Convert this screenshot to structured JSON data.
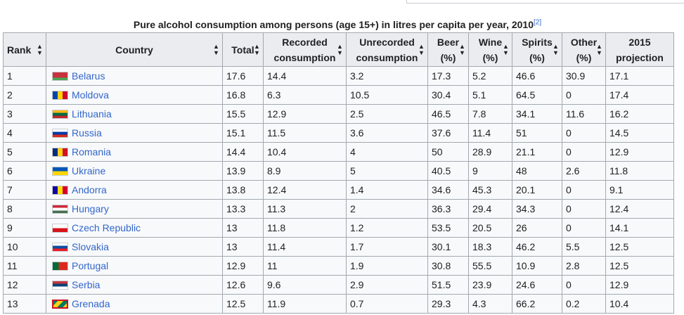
{
  "caption": {
    "title": "Pure alcohol consumption among persons (age 15+) in litres per capita per year, 2010",
    "ref": "[2]"
  },
  "headers": [
    {
      "label": "Rank",
      "icon": "sort-icon"
    },
    {
      "label": "Country",
      "icon": "sort-icon"
    },
    {
      "label": "Total",
      "icon": "sort-icon"
    },
    {
      "label": "Recorded consumption",
      "icon": "sort-icon"
    },
    {
      "label": "Unrecorded consumption",
      "icon": "sort-icon"
    },
    {
      "label": "Beer (%)",
      "icon": "sort-icon"
    },
    {
      "label": "Wine (%)",
      "icon": "sort-icon"
    },
    {
      "label": "Spirits (%)",
      "icon": "sort-icon"
    },
    {
      "label": "Other (%)",
      "icon": "sort-icon"
    },
    {
      "label": "2015 projection",
      "icon": "none"
    }
  ],
  "rows": [
    {
      "rank": "1",
      "country": "Belarus",
      "flag": "flag-belarus-icon",
      "total": "17.6",
      "recorded": "14.4",
      "unrecorded": "3.2",
      "beer": "17.3",
      "wine": "5.2",
      "spirits": "46.6",
      "other": "30.9",
      "projection": "17.1"
    },
    {
      "rank": "2",
      "country": "Moldova",
      "flag": "flag-moldova-icon",
      "total": "16.8",
      "recorded": "6.3",
      "unrecorded": "10.5",
      "beer": "30.4",
      "wine": "5.1",
      "spirits": "64.5",
      "other": "0",
      "projection": "17.4"
    },
    {
      "rank": "3",
      "country": "Lithuania",
      "flag": "flag-lithuania-icon",
      "total": "15.5",
      "recorded": "12.9",
      "unrecorded": "2.5",
      "beer": "46.5",
      "wine": "7.8",
      "spirits": "34.1",
      "other": "11.6",
      "projection": "16.2"
    },
    {
      "rank": "4",
      "country": "Russia",
      "flag": "flag-russia-icon",
      "total": "15.1",
      "recorded": "11.5",
      "unrecorded": "3.6",
      "beer": "37.6",
      "wine": "11.4",
      "spirits": "51",
      "other": "0",
      "projection": "14.5"
    },
    {
      "rank": "5",
      "country": "Romania",
      "flag": "flag-romania-icon",
      "total": "14.4",
      "recorded": "10.4",
      "unrecorded": "4",
      "beer": "50",
      "wine": "28.9",
      "spirits": "21.1",
      "other": "0",
      "projection": "12.9"
    },
    {
      "rank": "6",
      "country": "Ukraine",
      "flag": "flag-ukraine-icon",
      "total": "13.9",
      "recorded": "8.9",
      "unrecorded": "5",
      "beer": "40.5",
      "wine": "9",
      "spirits": "48",
      "other": "2.6",
      "projection": "11.8"
    },
    {
      "rank": "7",
      "country": "Andorra",
      "flag": "flag-andorra-icon",
      "total": "13.8",
      "recorded": "12.4",
      "unrecorded": "1.4",
      "beer": "34.6",
      "wine": "45.3",
      "spirits": "20.1",
      "other": "0",
      "projection": "9.1"
    },
    {
      "rank": "8",
      "country": "Hungary",
      "flag": "flag-hungary-icon",
      "total": "13.3",
      "recorded": "11.3",
      "unrecorded": "2",
      "beer": "36.3",
      "wine": "29.4",
      "spirits": "34.3",
      "other": "0",
      "projection": "12.4"
    },
    {
      "rank": "9",
      "country": "Czech Republic",
      "flag": "flag-czech-republic-icon",
      "total": "13",
      "recorded": "11.8",
      "unrecorded": "1.2",
      "beer": "53.5",
      "wine": "20.5",
      "spirits": "26",
      "other": "0",
      "projection": "14.1"
    },
    {
      "rank": "10",
      "country": "Slovakia",
      "flag": "flag-slovakia-icon",
      "total": "13",
      "recorded": "11.4",
      "unrecorded": "1.7",
      "beer": "30.1",
      "wine": "18.3",
      "spirits": "46.2",
      "other": "5.5",
      "projection": "12.5"
    },
    {
      "rank": "11",
      "country": "Portugal",
      "flag": "flag-portugal-icon",
      "total": "12.9",
      "recorded": "11",
      "unrecorded": "1.9",
      "beer": "30.8",
      "wine": "55.5",
      "spirits": "10.9",
      "other": "2.8",
      "projection": "12.5"
    },
    {
      "rank": "12",
      "country": "Serbia",
      "flag": "flag-serbia-icon",
      "total": "12.6",
      "recorded": "9.6",
      "unrecorded": "2.9",
      "beer": "51.5",
      "wine": "23.9",
      "spirits": "24.6",
      "other": "0",
      "projection": "12.9"
    },
    {
      "rank": "13",
      "country": "Grenada",
      "flag": "flag-grenada-icon",
      "total": "12.5",
      "recorded": "11.9",
      "unrecorded": "0.7",
      "beer": "29.3",
      "wine": "4.3",
      "spirits": "66.2",
      "other": "0.2",
      "projection": "10.4"
    }
  ],
  "colors": {
    "header_bg": "#eaecf0",
    "cell_bg": "#f8f9fa",
    "border": "#a2a9b1",
    "link": "#3366cc",
    "text": "#202122"
  }
}
